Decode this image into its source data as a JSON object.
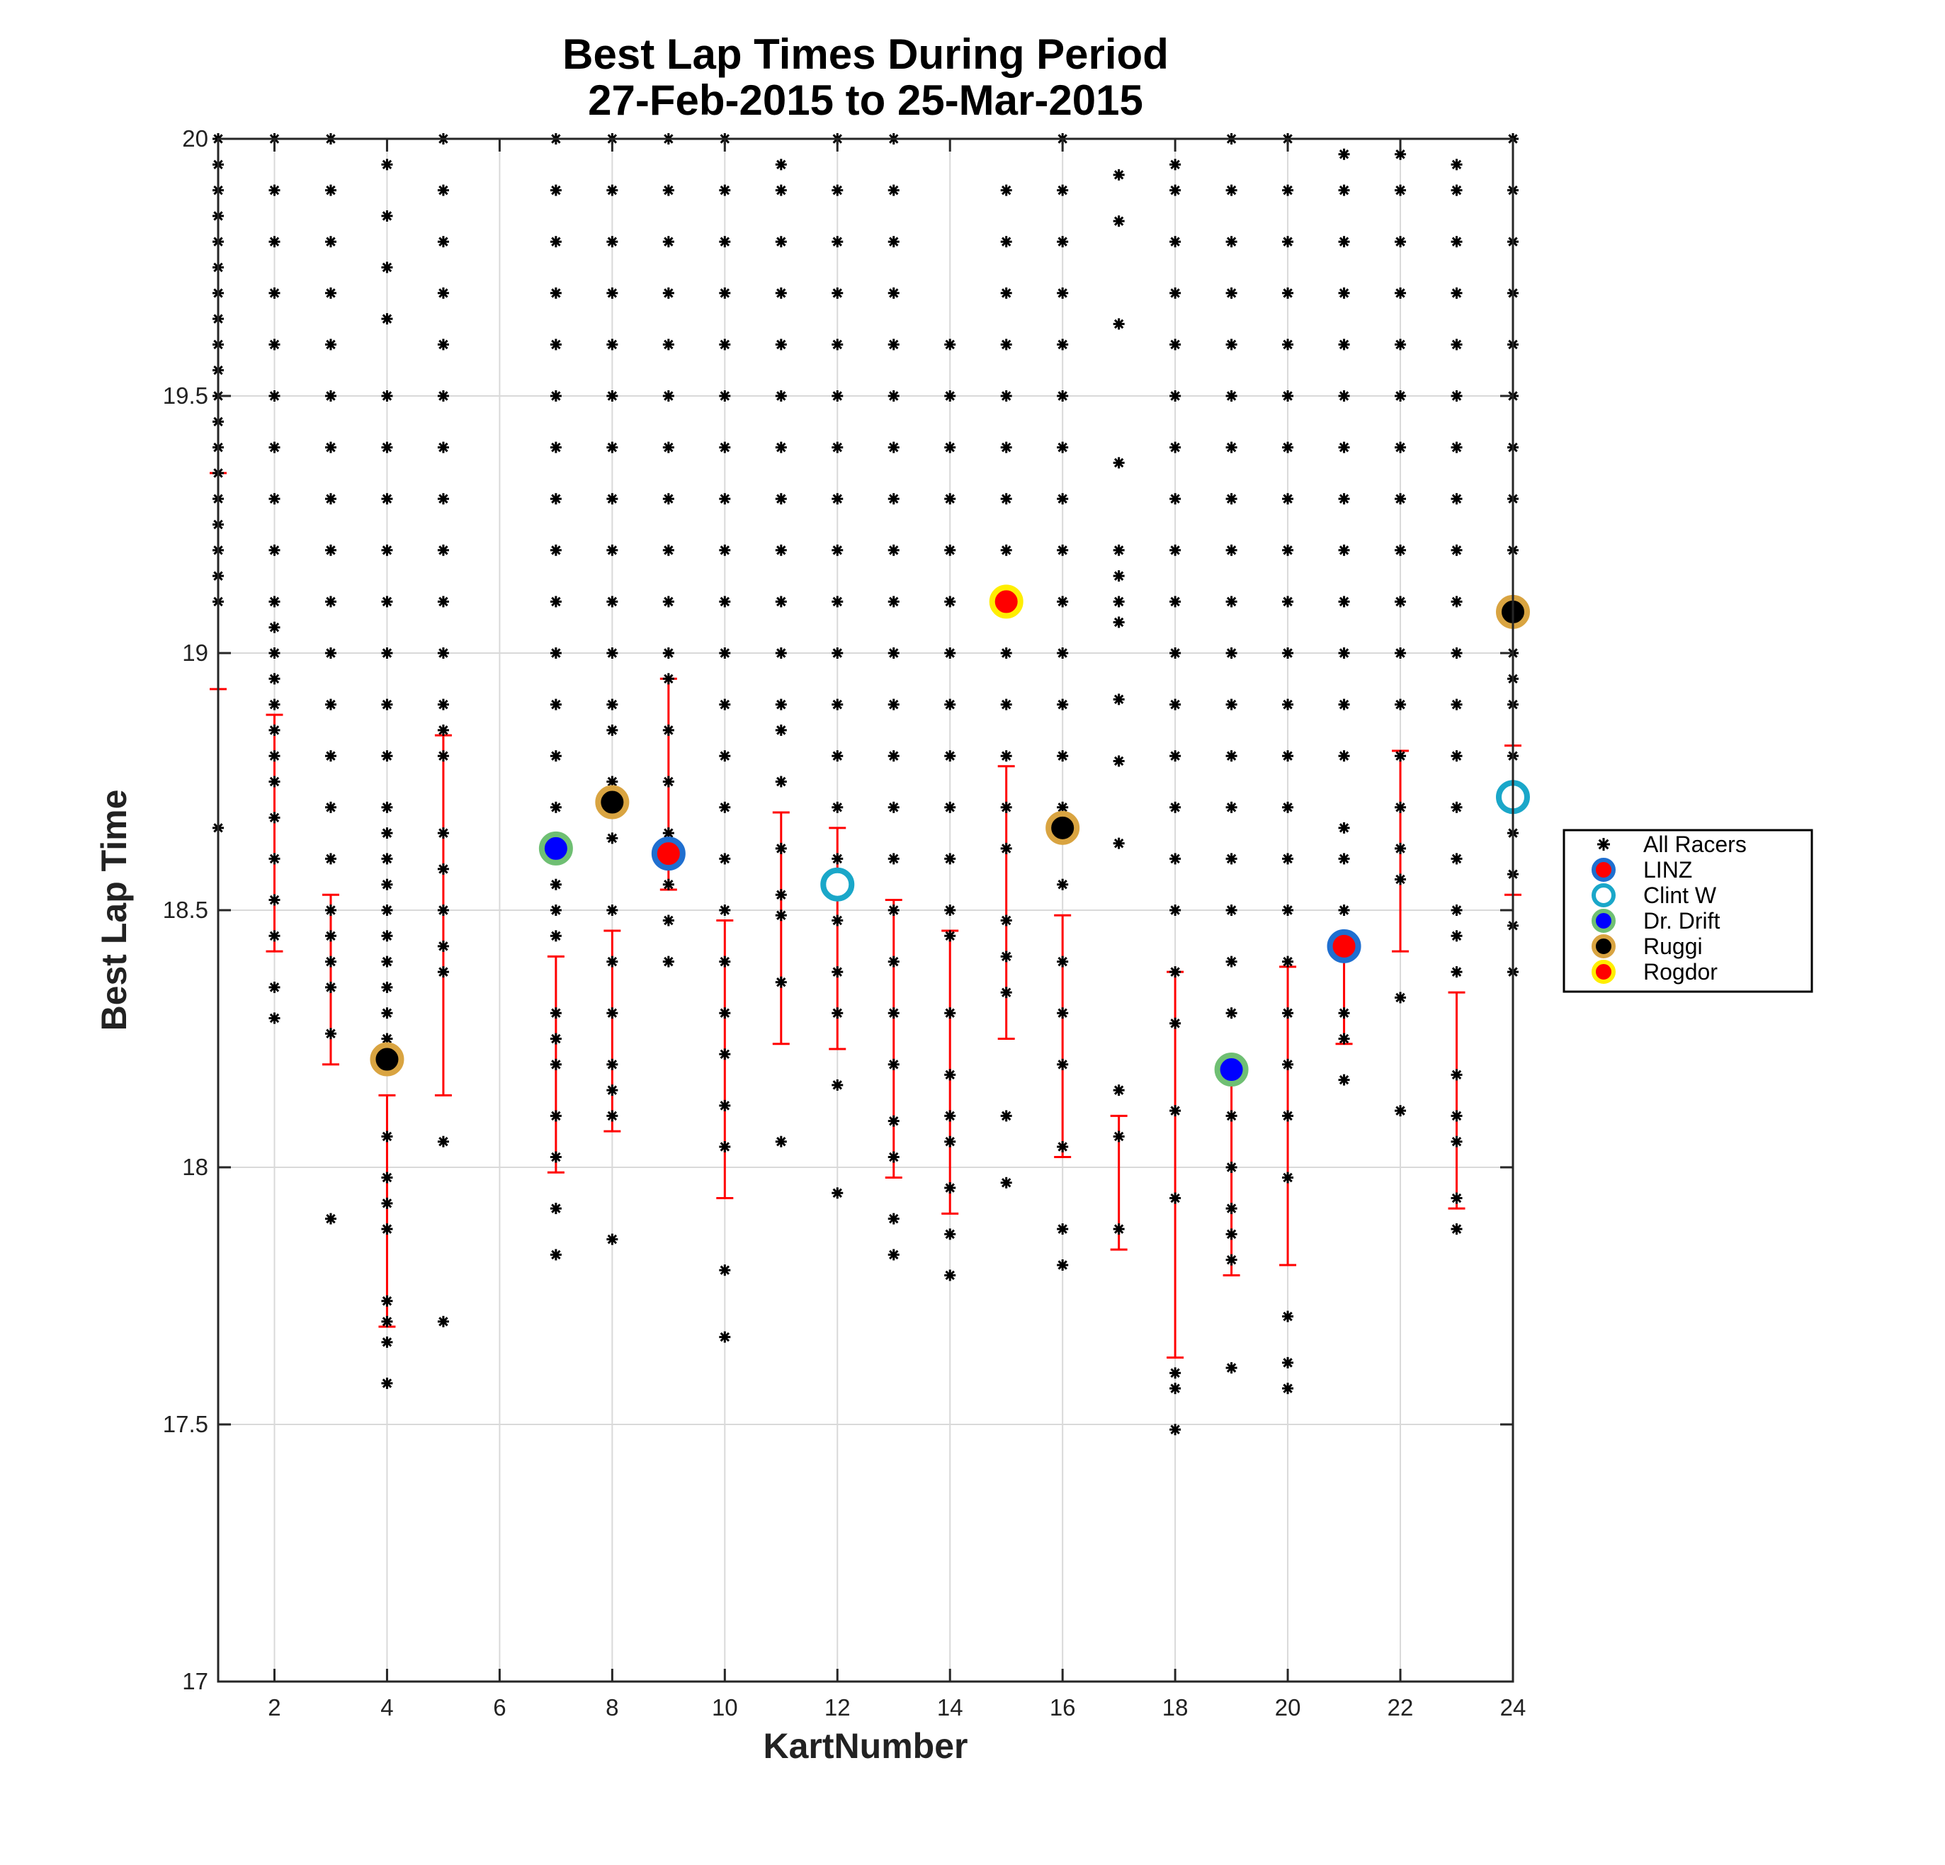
{
  "chart_data": {
    "type": "scatter",
    "title": [
      "Best Lap Times During Period",
      "27-Feb-2015 to 25-Mar-2015"
    ],
    "xlabel": "KartNumber",
    "ylabel": "Best Lap Time",
    "xlim": [
      1,
      24
    ],
    "ylim": [
      17,
      20
    ],
    "xticks": [
      2,
      4,
      6,
      8,
      10,
      12,
      14,
      16,
      18,
      20,
      22,
      24
    ],
    "yticks": [
      17,
      17.5,
      18,
      18.5,
      19,
      19.5,
      20
    ],
    "xtick_labels": [
      "2",
      "4",
      "6",
      "8",
      "10",
      "12",
      "14",
      "16",
      "18",
      "20",
      "22",
      "24"
    ],
    "ytick_labels": [
      "17",
      "17.5",
      "18",
      "18.5",
      "19",
      "19.5",
      "20"
    ],
    "grid": true,
    "legend_position": "right",
    "colors": {
      "all_racers": "#000000",
      "error_bar": "#ff0000",
      "blue_ring": "#1f6fd0",
      "cyan_ring": "#1aa7c9",
      "green_ring": "#6fbf73",
      "tan_ring": "#d9a441",
      "yellow_ring": "#ffee00",
      "red_fill": "#ff0000",
      "blue_fill": "#0000ff",
      "black_fill": "#000000"
    },
    "all_racers": [
      {
        "kart": 1,
        "times": [
          18.66,
          19.1,
          19.15,
          19.2,
          19.25,
          19.3,
          19.35,
          19.4,
          19.45,
          19.5,
          19.55,
          19.6,
          19.65,
          19.7,
          19.75,
          19.8,
          19.85,
          19.9,
          19.95,
          20.0
        ]
      },
      {
        "kart": 2,
        "times": [
          18.29,
          18.35,
          18.45,
          18.52,
          18.6,
          18.68,
          18.75,
          18.8,
          18.85,
          18.9,
          18.95,
          19.0,
          19.05,
          19.1,
          19.2,
          19.3,
          19.4,
          19.5,
          19.6,
          19.7,
          19.8,
          19.9,
          20.0
        ]
      },
      {
        "kart": 3,
        "times": [
          17.9,
          18.26,
          18.35,
          18.4,
          18.45,
          18.5,
          18.6,
          18.7,
          18.8,
          18.9,
          19.0,
          19.1,
          19.2,
          19.3,
          19.4,
          19.5,
          19.6,
          19.7,
          19.8,
          19.9,
          20.0
        ]
      },
      {
        "kart": 4,
        "times": [
          17.58,
          17.66,
          17.7,
          17.74,
          17.88,
          17.93,
          17.98,
          18.06,
          18.2,
          18.25,
          18.3,
          18.35,
          18.4,
          18.45,
          18.5,
          18.55,
          18.6,
          18.65,
          18.7,
          18.8,
          18.9,
          19.0,
          19.1,
          19.2,
          19.3,
          19.4,
          19.5,
          19.65,
          19.75,
          19.85,
          19.95
        ]
      },
      {
        "kart": 5,
        "times": [
          17.7,
          18.05,
          18.38,
          18.43,
          18.5,
          18.58,
          18.65,
          18.8,
          18.85,
          18.9,
          19.0,
          19.1,
          19.2,
          19.3,
          19.4,
          19.5,
          19.6,
          19.7,
          19.8,
          19.9,
          20.0
        ]
      },
      {
        "kart": 7,
        "times": [
          17.83,
          17.92,
          18.02,
          18.1,
          18.2,
          18.25,
          18.3,
          18.45,
          18.5,
          18.55,
          18.6,
          18.7,
          18.8,
          18.9,
          19.0,
          19.1,
          19.2,
          19.3,
          19.4,
          19.5,
          19.6,
          19.7,
          19.8,
          19.9,
          20.0
        ]
      },
      {
        "kart": 8,
        "times": [
          17.86,
          18.1,
          18.15,
          18.2,
          18.3,
          18.4,
          18.5,
          18.64,
          18.75,
          18.85,
          18.9,
          19.0,
          19.1,
          19.2,
          19.3,
          19.4,
          19.5,
          19.6,
          19.7,
          19.8,
          19.9,
          20.0
        ]
      },
      {
        "kart": 9,
        "times": [
          18.4,
          18.48,
          18.55,
          18.65,
          18.75,
          18.85,
          18.95,
          19.0,
          19.1,
          19.2,
          19.3,
          19.4,
          19.5,
          19.6,
          19.7,
          19.8,
          19.9,
          20.0
        ]
      },
      {
        "kart": 10,
        "times": [
          17.67,
          17.8,
          18.04,
          18.12,
          18.22,
          18.3,
          18.4,
          18.5,
          18.6,
          18.7,
          18.8,
          18.9,
          19.0,
          19.1,
          19.2,
          19.3,
          19.4,
          19.5,
          19.6,
          19.7,
          19.8,
          19.9,
          20.0
        ]
      },
      {
        "kart": 11,
        "times": [
          18.05,
          18.36,
          18.49,
          18.53,
          18.62,
          18.75,
          18.85,
          18.9,
          19.0,
          19.1,
          19.2,
          19.3,
          19.4,
          19.5,
          19.6,
          19.7,
          19.8,
          19.9,
          19.95
        ]
      },
      {
        "kart": 12,
        "times": [
          17.95,
          18.16,
          18.3,
          18.38,
          18.48,
          18.6,
          18.7,
          18.8,
          18.9,
          19.0,
          19.1,
          19.2,
          19.3,
          19.4,
          19.5,
          19.6,
          19.7,
          19.8,
          19.9,
          20.0
        ]
      },
      {
        "kart": 13,
        "times": [
          17.83,
          17.9,
          18.02,
          18.09,
          18.2,
          18.3,
          18.4,
          18.5,
          18.6,
          18.7,
          18.8,
          18.9,
          19.0,
          19.1,
          19.2,
          19.3,
          19.4,
          19.5,
          19.6,
          19.7,
          19.8,
          19.9,
          20.0
        ]
      },
      {
        "kart": 14,
        "times": [
          17.79,
          17.87,
          17.96,
          18.05,
          18.1,
          18.18,
          18.3,
          18.45,
          18.5,
          18.6,
          18.7,
          18.8,
          18.9,
          19.0,
          19.1,
          19.2,
          19.3,
          19.4,
          19.5,
          19.6
        ]
      },
      {
        "kart": 15,
        "times": [
          17.97,
          18.1,
          18.34,
          18.41,
          18.48,
          18.62,
          18.7,
          18.8,
          18.9,
          19.0,
          19.2,
          19.3,
          19.4,
          19.5,
          19.6,
          19.7,
          19.8,
          19.9
        ]
      },
      {
        "kart": 16,
        "times": [
          17.81,
          17.88,
          18.04,
          18.2,
          18.3,
          18.4,
          18.55,
          18.7,
          18.8,
          18.9,
          19.0,
          19.1,
          19.2,
          19.3,
          19.4,
          19.5,
          19.6,
          19.7,
          19.8,
          19.9,
          20.0
        ]
      },
      {
        "kart": 17,
        "times": [
          17.88,
          18.06,
          18.15,
          18.63,
          18.79,
          18.91,
          19.06,
          19.1,
          19.15,
          19.2,
          19.37,
          19.64,
          19.84,
          19.93
        ]
      },
      {
        "kart": 18,
        "times": [
          17.49,
          17.57,
          17.6,
          17.94,
          18.11,
          18.28,
          18.38,
          18.5,
          18.6,
          18.7,
          18.8,
          18.9,
          19.0,
          19.1,
          19.2,
          19.3,
          19.4,
          19.5,
          19.6,
          19.7,
          19.8,
          19.9,
          19.95
        ]
      },
      {
        "kart": 19,
        "times": [
          17.61,
          17.82,
          17.87,
          17.92,
          18.0,
          18.1,
          18.2,
          18.3,
          18.4,
          18.5,
          18.6,
          18.7,
          18.8,
          18.9,
          19.0,
          19.1,
          19.2,
          19.3,
          19.4,
          19.5,
          19.6,
          19.7,
          19.8,
          19.9,
          20.0
        ]
      },
      {
        "kart": 20,
        "times": [
          17.57,
          17.62,
          17.71,
          17.98,
          18.1,
          18.2,
          18.3,
          18.4,
          18.5,
          18.6,
          18.7,
          18.8,
          18.9,
          19.0,
          19.1,
          19.2,
          19.3,
          19.4,
          19.5,
          19.6,
          19.7,
          19.8,
          19.9,
          20.0
        ]
      },
      {
        "kart": 21,
        "times": [
          18.17,
          18.25,
          18.3,
          18.5,
          18.6,
          18.66,
          18.8,
          18.9,
          19.0,
          19.1,
          19.2,
          19.3,
          19.4,
          19.5,
          19.6,
          19.7,
          19.8,
          19.9,
          19.97
        ]
      },
      {
        "kart": 22,
        "times": [
          18.11,
          18.33,
          18.56,
          18.62,
          18.7,
          18.8,
          18.9,
          19.0,
          19.1,
          19.2,
          19.3,
          19.4,
          19.5,
          19.6,
          19.7,
          19.8,
          19.9,
          19.97
        ]
      },
      {
        "kart": 23,
        "times": [
          17.88,
          17.94,
          18.05,
          18.1,
          18.18,
          18.38,
          18.45,
          18.5,
          18.6,
          18.7,
          18.8,
          18.9,
          19.0,
          19.1,
          19.2,
          19.3,
          19.4,
          19.5,
          19.6,
          19.7,
          19.8,
          19.9,
          19.95
        ]
      },
      {
        "kart": 24,
        "times": [
          18.38,
          18.47,
          18.57,
          18.65,
          18.8,
          18.9,
          18.95,
          19.0,
          19.1,
          19.2,
          19.3,
          19.4,
          19.5,
          19.6,
          19.7,
          19.8,
          19.9,
          20.0
        ]
      }
    ],
    "error_bars": [
      {
        "kart": 1,
        "low": 18.93,
        "high": 19.35
      },
      {
        "kart": 2,
        "low": 18.42,
        "high": 18.88
      },
      {
        "kart": 3,
        "low": 18.2,
        "high": 18.53
      },
      {
        "kart": 4,
        "low": 17.69,
        "high": 18.14
      },
      {
        "kart": 5,
        "low": 18.14,
        "high": 18.84
      },
      {
        "kart": 6,
        "low": 20.0,
        "high": 20.0
      },
      {
        "kart": 7,
        "low": 17.99,
        "high": 18.41
      },
      {
        "kart": 8,
        "low": 18.07,
        "high": 18.46
      },
      {
        "kart": 9,
        "low": 18.54,
        "high": 18.95
      },
      {
        "kart": 10,
        "low": 17.94,
        "high": 18.48
      },
      {
        "kart": 11,
        "low": 18.24,
        "high": 18.69
      },
      {
        "kart": 12,
        "low": 18.23,
        "high": 18.66
      },
      {
        "kart": 13,
        "low": 17.98,
        "high": 18.52
      },
      {
        "kart": 14,
        "low": 17.91,
        "high": 18.46
      },
      {
        "kart": 15,
        "low": 18.25,
        "high": 18.78
      },
      {
        "kart": 16,
        "low": 18.02,
        "high": 18.49
      },
      {
        "kart": 17,
        "low": 17.84,
        "high": 18.1
      },
      {
        "kart": 18,
        "low": 17.63,
        "high": 18.38
      },
      {
        "kart": 19,
        "low": 17.79,
        "high": 18.18
      },
      {
        "kart": 20,
        "low": 17.81,
        "high": 18.39
      },
      {
        "kart": 21,
        "low": 18.24,
        "high": 18.43
      },
      {
        "kart": 22,
        "low": 18.42,
        "high": 18.81
      },
      {
        "kart": 23,
        "low": 17.92,
        "high": 18.34
      },
      {
        "kart": 24,
        "low": 18.53,
        "high": 18.82
      }
    ],
    "series": [
      {
        "name": "LINZ",
        "ring": "#1f6fd0",
        "fill": "#ff0000",
        "points": [
          {
            "x": 9,
            "y": 18.61
          },
          {
            "x": 21,
            "y": 18.43
          }
        ]
      },
      {
        "name": "Clint W",
        "ring": "#1aa7c9",
        "fill": "none",
        "points": [
          {
            "x": 12,
            "y": 18.55
          },
          {
            "x": 24,
            "y": 18.72
          }
        ]
      },
      {
        "name": "Dr. Drift",
        "ring": "#6fbf73",
        "fill": "#0000ff",
        "points": [
          {
            "x": 7,
            "y": 18.62
          },
          {
            "x": 19,
            "y": 18.19
          }
        ]
      },
      {
        "name": "Ruggi",
        "ring": "#d9a441",
        "fill": "#000000",
        "points": [
          {
            "x": 4,
            "y": 18.21
          },
          {
            "x": 8,
            "y": 18.71
          },
          {
            "x": 16,
            "y": 18.66
          },
          {
            "x": 24,
            "y": 19.08
          }
        ]
      },
      {
        "name": "Rogdor",
        "ring": "#ffee00",
        "fill": "#ff0000",
        "points": [
          {
            "x": 15,
            "y": 19.1
          }
        ]
      }
    ],
    "legend": [
      "All Racers",
      "LINZ",
      "Clint W",
      "Dr. Drift",
      "Ruggi",
      "Rogdor"
    ]
  }
}
